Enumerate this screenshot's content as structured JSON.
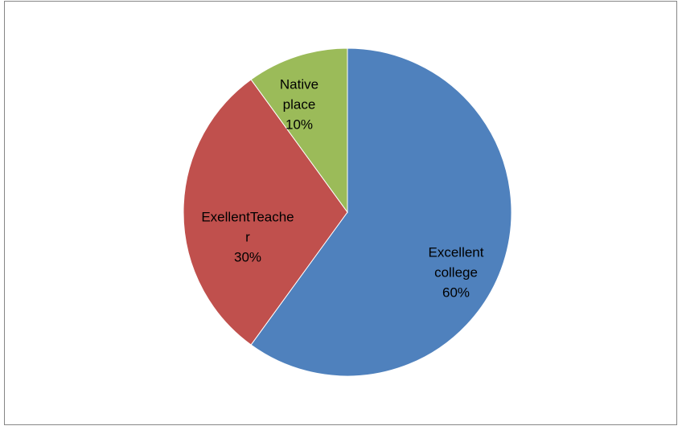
{
  "chart_data": {
    "type": "pie",
    "categories": [
      "Excellent college",
      "ExellentTeacher",
      "Native place"
    ],
    "values": [
      60,
      30,
      10
    ],
    "value_labels": [
      "60%",
      "30%",
      "10%"
    ],
    "colors": [
      "#4f81bd",
      "#c0504d",
      "#9bbb59"
    ]
  }
}
